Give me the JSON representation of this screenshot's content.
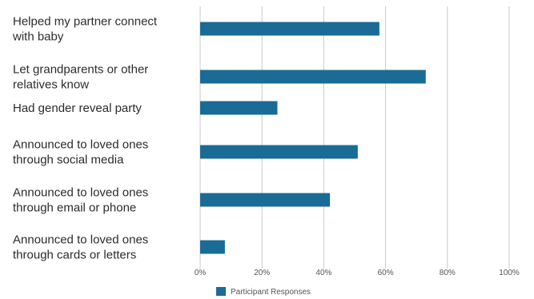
{
  "chart_data": {
    "type": "bar",
    "orientation": "horizontal",
    "categories": [
      [
        "Helped my partner connect",
        "with baby"
      ],
      [
        "Let grandparents or other",
        "relatives know"
      ],
      [
        "Had gender reveal party"
      ],
      [
        "Announced to loved ones",
        "through social media"
      ],
      [
        "Announced to loved ones",
        "through email or phone"
      ],
      [
        "Announced to loved ones",
        "through cards or letters"
      ]
    ],
    "series": [
      {
        "name": "Participant Responses",
        "values": [
          58,
          73,
          25,
          51,
          42,
          8
        ]
      }
    ],
    "xlim": [
      0,
      100
    ],
    "xticks": [
      0,
      20,
      40,
      60,
      80,
      100
    ],
    "xtick_labels": [
      "0%",
      "20%",
      "40%",
      "60%",
      "80%",
      "100%"
    ],
    "grid": true,
    "legend_position": "bottom-left",
    "colors": {
      "bar": "#1a6b96",
      "grid": "#c9c9c9"
    }
  }
}
